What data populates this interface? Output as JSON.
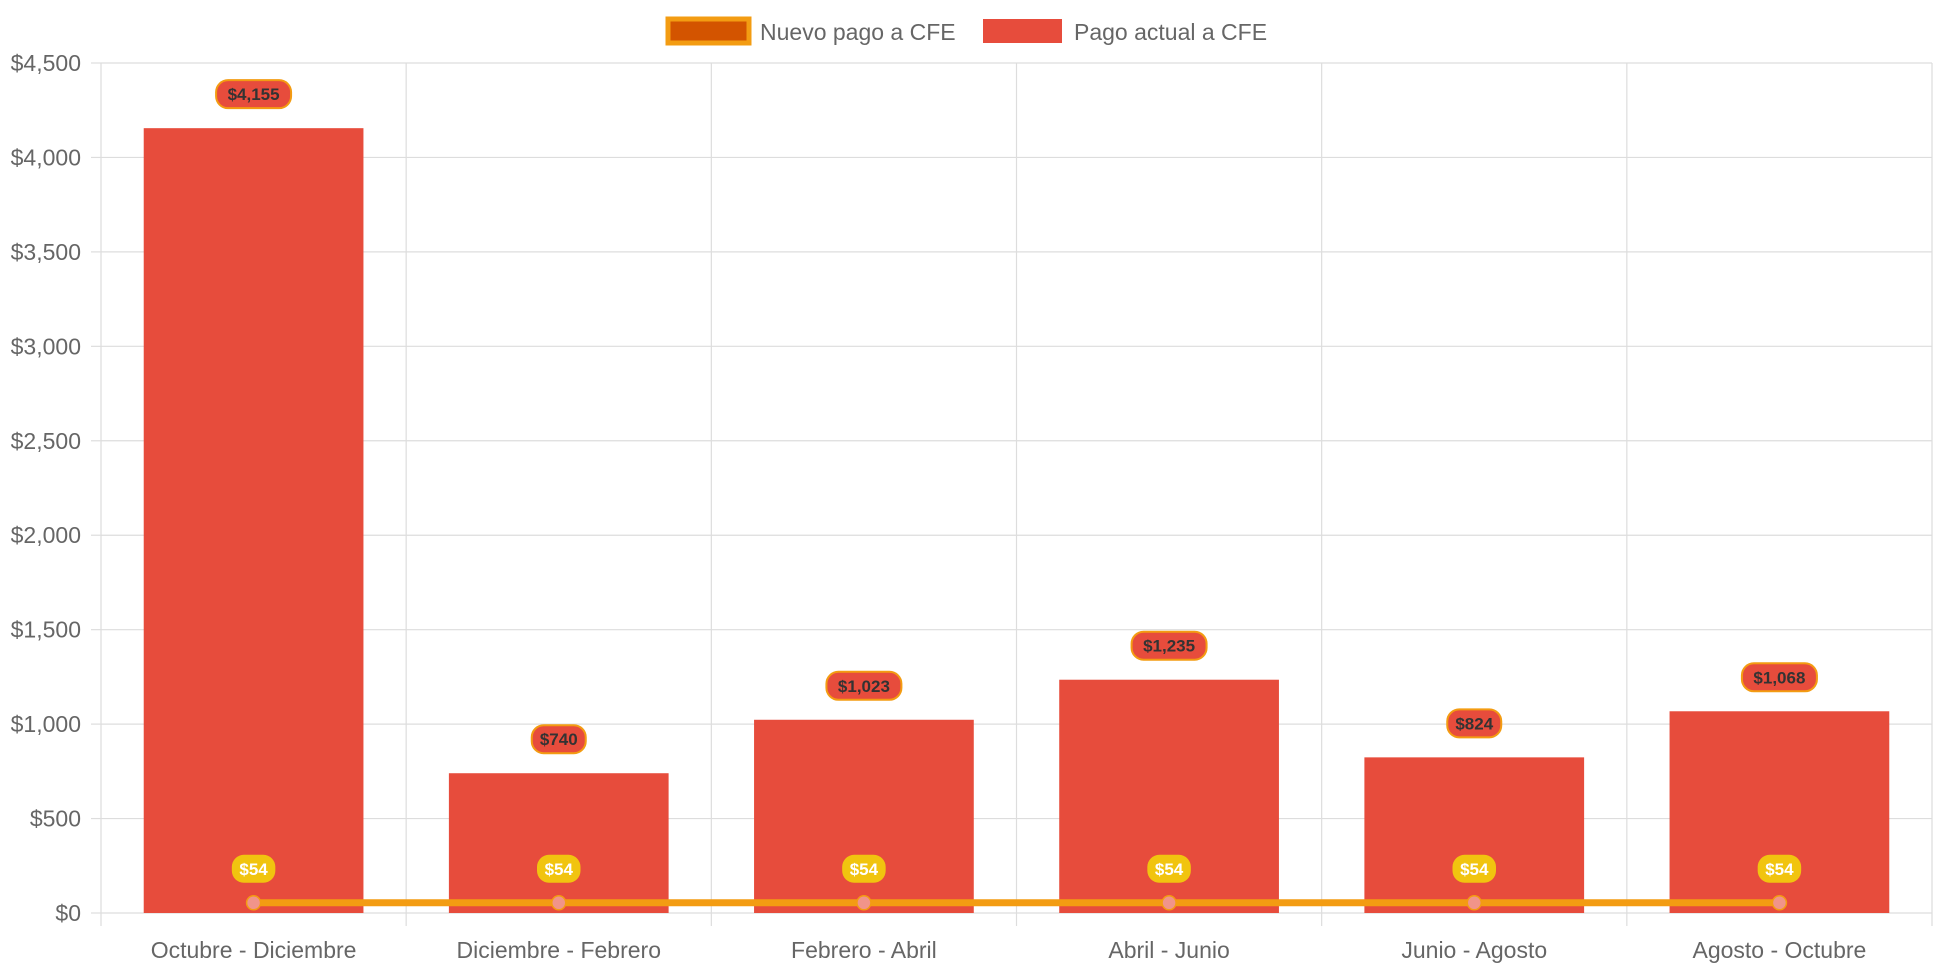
{
  "chart_data": {
    "type": "bar",
    "categories": [
      "Octubre - Diciembre",
      "Diciembre - Febrero",
      "Febrero - Abril",
      "Abril - Junio",
      "Junio - Agosto",
      "Agosto - Octubre"
    ],
    "series": [
      {
        "name": "Pago actual a CFE",
        "type": "bar",
        "values": [
          4155,
          740,
          1023,
          1235,
          824,
          1068
        ],
        "labels": [
          "$4,155",
          "$740",
          "$1,023",
          "$1,235",
          "$824",
          "$1,068"
        ],
        "color": "#e74c3c"
      },
      {
        "name": "Nuevo pago a CFE",
        "type": "line",
        "values": [
          54,
          54,
          54,
          54,
          54,
          54
        ],
        "labels": [
          "$54",
          "$54",
          "$54",
          "$54",
          "$54",
          "$54"
        ],
        "color": "#f39c12",
        "fill_color": "#d35400"
      }
    ],
    "y_ticks": [
      "$0",
      "$500",
      "$1,000",
      "$1,500",
      "$2,000",
      "$2,500",
      "$3,000",
      "$3,500",
      "$4,000",
      "$4,500"
    ],
    "ylim": [
      0,
      4500
    ],
    "grid": true,
    "legend_position": "top-center",
    "colors": {
      "grid": "#dddddd",
      "bar_label_bg": "#e74c3c",
      "bar_label_border": "#f39c12",
      "bar_label_text": "#333333",
      "line_label_bg": "#f1c40f",
      "line_label_text": "#ffffff",
      "point": "#f1948a"
    }
  }
}
